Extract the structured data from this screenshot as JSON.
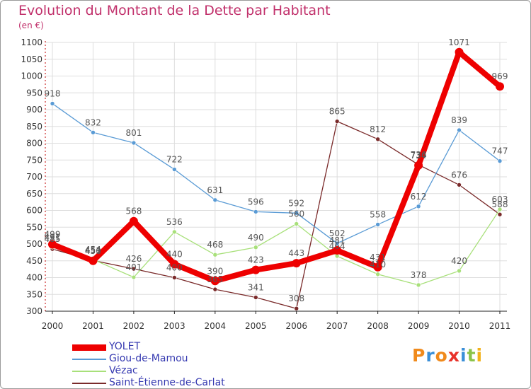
{
  "title": "Evolution du Montant de la Dette par Habitant",
  "subtitle": "(en €)",
  "logo": "Proxiti",
  "colors": {
    "title": "#c1306b",
    "legend_text": "#3438b0",
    "axis": "#c00000",
    "grid": "#dddddd"
  },
  "chart_data": {
    "type": "line",
    "title": "Evolution du Montant de la Dette par Habitant",
    "ylabel": "(en €)",
    "xlabel": "",
    "categories": [
      "2000",
      "2001",
      "2002",
      "2003",
      "2004",
      "2005",
      "2006",
      "2007",
      "2008",
      "2009",
      "2010",
      "2011"
    ],
    "ylim": [
      300,
      1100
    ],
    "yticks": [
      300,
      350,
      400,
      450,
      500,
      550,
      600,
      650,
      700,
      750,
      800,
      850,
      900,
      950,
      1000,
      1050,
      1100
    ],
    "legend_position": "bottom-left",
    "series": [
      {
        "name": "YOLET",
        "color": "#ee0000",
        "width": 8,
        "values": [
          499,
          450,
          568,
          440,
          390,
          423,
          443,
          481,
          431,
          734,
          1071,
          969
        ]
      },
      {
        "name": "Giou-de-Mamou",
        "color": "#5a9bd5",
        "width": 1.3,
        "values": [
          918,
          832,
          801,
          722,
          631,
          596,
          592,
          502,
          558,
          612,
          839,
          747
        ]
      },
      {
        "name": "Vézac",
        "color": "#a8e07a",
        "width": 1.3,
        "values": [
          491,
          454,
          401,
          536,
          468,
          490,
          560,
          464,
          410,
          378,
          420,
          603
        ]
      },
      {
        "name": "Saint-Étienne-de-Carlat",
        "color": "#7a2a2a",
        "width": 1.3,
        "values": [
          485,
          451,
          426,
          400,
          365,
          341,
          308,
          865,
          812,
          736,
          676,
          588
        ]
      }
    ],
    "label_order": [
      2,
      1,
      0,
      3
    ]
  }
}
